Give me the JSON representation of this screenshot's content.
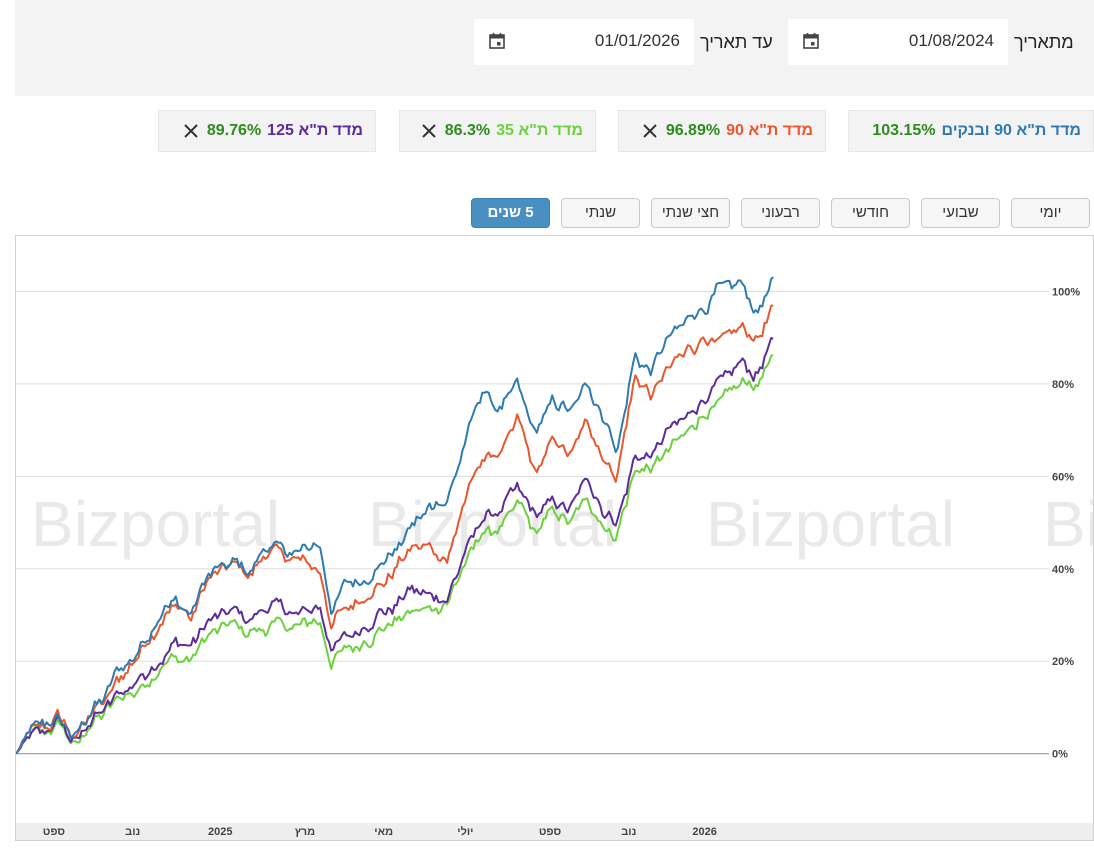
{
  "filters": {
    "from_label": "מתאריך",
    "from_value": "01/08/2024",
    "to_label": "עד תאריך",
    "to_value": "01/01/2026"
  },
  "chips": [
    {
      "name": "מדד ת\"א 90 ובנקים",
      "pct": "103.15%",
      "color": "#2f7bb0"
    },
    {
      "name": "מדד ת\"א 90",
      "pct": "96.89%",
      "color": "#e8572e"
    },
    {
      "name": "מדד ת\"א 35",
      "pct": "86.3%",
      "color": "#6cd13c"
    },
    {
      "name": "מדד ת\"א 125",
      "pct": "89.76%",
      "color": "#5d2c9c"
    }
  ],
  "ranges": [
    "יומי",
    "שבועי",
    "חודשי",
    "רבעוני",
    "חצי שנתי",
    "שנתי",
    "5 שנים"
  ],
  "active_range": "5 שנים",
  "watermark": "Bizportal",
  "chart_data": {
    "type": "line",
    "ylim": [
      -15,
      112
    ],
    "yticks": [
      {
        "v": 0,
        "label": "0%"
      },
      {
        "v": 20,
        "label": "20%"
      },
      {
        "v": 40,
        "label": "40%"
      },
      {
        "v": 60,
        "label": "60%"
      },
      {
        "v": 80,
        "label": "80%"
      },
      {
        "v": 100,
        "label": "100%"
      }
    ],
    "xlim": [
      0,
      354
    ],
    "xticks": [
      {
        "t": 13,
        "label": "ספט"
      },
      {
        "t": 40,
        "label": "נוב"
      },
      {
        "t": 70,
        "label": "2025"
      },
      {
        "t": 99,
        "label": "מרץ"
      },
      {
        "t": 126,
        "label": "מאי"
      },
      {
        "t": 154,
        "label": "יולי"
      },
      {
        "t": 183,
        "label": "ספט"
      },
      {
        "t": 210,
        "label": "נוב"
      },
      {
        "t": 236,
        "label": "2026"
      }
    ],
    "series": [
      {
        "name": "מדד ת\"א 90 ובנקים",
        "color": "#2f7bb0",
        "points": [
          [
            0,
            0
          ],
          [
            5,
            5
          ],
          [
            10,
            6
          ],
          [
            15,
            8
          ],
          [
            20,
            3
          ],
          [
            25,
            9
          ],
          [
            30,
            12
          ],
          [
            35,
            18
          ],
          [
            40,
            21
          ],
          [
            45,
            25
          ],
          [
            50,
            31
          ],
          [
            55,
            33
          ],
          [
            60,
            30
          ],
          [
            65,
            38
          ],
          [
            70,
            40
          ],
          [
            75,
            42
          ],
          [
            80,
            39
          ],
          [
            85,
            44
          ],
          [
            90,
            45
          ],
          [
            95,
            43
          ],
          [
            100,
            44
          ],
          [
            104,
            46
          ],
          [
            108,
            31
          ],
          [
            113,
            36
          ],
          [
            118,
            37
          ],
          [
            124,
            40
          ],
          [
            130,
            44
          ],
          [
            136,
            50
          ],
          [
            142,
            53
          ],
          [
            148,
            55
          ],
          [
            154,
            68
          ],
          [
            160,
            79
          ],
          [
            166,
            74
          ],
          [
            172,
            80
          ],
          [
            178,
            69
          ],
          [
            184,
            76
          ],
          [
            190,
            74
          ],
          [
            196,
            80
          ],
          [
            202,
            72
          ],
          [
            206,
            65
          ],
          [
            212,
            86
          ],
          [
            218,
            83
          ],
          [
            224,
            90
          ],
          [
            230,
            94
          ],
          [
            236,
            97
          ],
          [
            240,
            100
          ],
          [
            248,
            102
          ],
          [
            254,
            96
          ],
          [
            260,
            103
          ]
        ]
      },
      {
        "name": "מדד ת\"א 90",
        "color": "#e8572e",
        "points": [
          [
            0,
            0
          ],
          [
            5,
            5
          ],
          [
            10,
            6
          ],
          [
            15,
            8
          ],
          [
            20,
            3
          ],
          [
            25,
            9
          ],
          [
            30,
            11
          ],
          [
            35,
            16
          ],
          [
            40,
            20
          ],
          [
            45,
            24
          ],
          [
            50,
            29
          ],
          [
            55,
            32
          ],
          [
            60,
            29
          ],
          [
            65,
            37
          ],
          [
            70,
            39
          ],
          [
            75,
            41
          ],
          [
            80,
            38
          ],
          [
            85,
            43
          ],
          [
            90,
            44
          ],
          [
            95,
            42
          ],
          [
            100,
            41
          ],
          [
            104,
            40
          ],
          [
            108,
            28
          ],
          [
            113,
            31
          ],
          [
            118,
            33
          ],
          [
            124,
            36
          ],
          [
            130,
            40
          ],
          [
            136,
            45
          ],
          [
            142,
            44
          ],
          [
            148,
            42
          ],
          [
            154,
            55
          ],
          [
            160,
            64
          ],
          [
            166,
            65
          ],
          [
            172,
            72
          ],
          [
            178,
            60
          ],
          [
            184,
            68
          ],
          [
            190,
            65
          ],
          [
            196,
            72
          ],
          [
            202,
            63
          ],
          [
            206,
            60
          ],
          [
            212,
            81
          ],
          [
            218,
            78
          ],
          [
            224,
            84
          ],
          [
            230,
            87
          ],
          [
            236,
            90
          ],
          [
            240,
            88
          ],
          [
            248,
            92
          ],
          [
            254,
            90
          ],
          [
            260,
            96.9
          ]
        ]
      },
      {
        "name": "מדד ת\"א 125",
        "color": "#5d2c9c",
        "points": [
          [
            0,
            0
          ],
          [
            5,
            4
          ],
          [
            10,
            5
          ],
          [
            15,
            7
          ],
          [
            20,
            2
          ],
          [
            25,
            7
          ],
          [
            30,
            9
          ],
          [
            35,
            13
          ],
          [
            40,
            15
          ],
          [
            45,
            18
          ],
          [
            50,
            21
          ],
          [
            55,
            24
          ],
          [
            60,
            23
          ],
          [
            65,
            28
          ],
          [
            70,
            30
          ],
          [
            75,
            31
          ],
          [
            80,
            29
          ],
          [
            85,
            31
          ],
          [
            90,
            32
          ],
          [
            95,
            30
          ],
          [
            100,
            31
          ],
          [
            104,
            32
          ],
          [
            108,
            23
          ],
          [
            113,
            25
          ],
          [
            118,
            27
          ],
          [
            124,
            30
          ],
          [
            130,
            32
          ],
          [
            136,
            35
          ],
          [
            142,
            34
          ],
          [
            148,
            34
          ],
          [
            154,
            44
          ],
          [
            160,
            51
          ],
          [
            166,
            52
          ],
          [
            172,
            58
          ],
          [
            178,
            51
          ],
          [
            184,
            55
          ],
          [
            190,
            53
          ],
          [
            196,
            60
          ],
          [
            202,
            52
          ],
          [
            206,
            50
          ],
          [
            212,
            64
          ],
          [
            218,
            65
          ],
          [
            224,
            70
          ],
          [
            230,
            73
          ],
          [
            236,
            77
          ],
          [
            240,
            79
          ],
          [
            248,
            84
          ],
          [
            254,
            82
          ],
          [
            260,
            89.8
          ]
        ]
      },
      {
        "name": "מדד ת\"א 35",
        "color": "#6cd13c",
        "points": [
          [
            0,
            0
          ],
          [
            5,
            4
          ],
          [
            10,
            5
          ],
          [
            15,
            7
          ],
          [
            20,
            1
          ],
          [
            25,
            6
          ],
          [
            30,
            8
          ],
          [
            35,
            12
          ],
          [
            40,
            13
          ],
          [
            45,
            15
          ],
          [
            50,
            19
          ],
          [
            55,
            21
          ],
          [
            60,
            20
          ],
          [
            65,
            25
          ],
          [
            70,
            27
          ],
          [
            75,
            28
          ],
          [
            80,
            26
          ],
          [
            85,
            27
          ],
          [
            90,
            28
          ],
          [
            95,
            27
          ],
          [
            100,
            28
          ],
          [
            104,
            29
          ],
          [
            108,
            20
          ],
          [
            113,
            22
          ],
          [
            118,
            24
          ],
          [
            124,
            26
          ],
          [
            130,
            29
          ],
          [
            136,
            31
          ],
          [
            142,
            31
          ],
          [
            148,
            33
          ],
          [
            154,
            41
          ],
          [
            160,
            48
          ],
          [
            166,
            48
          ],
          [
            172,
            54
          ],
          [
            178,
            48
          ],
          [
            184,
            52
          ],
          [
            190,
            50
          ],
          [
            196,
            55
          ],
          [
            202,
            49
          ],
          [
            206,
            48
          ],
          [
            212,
            61
          ],
          [
            218,
            62
          ],
          [
            224,
            66
          ],
          [
            230,
            70
          ],
          [
            236,
            74
          ],
          [
            240,
            75
          ],
          [
            248,
            80
          ],
          [
            254,
            80
          ],
          [
            260,
            86.3
          ]
        ]
      }
    ]
  }
}
